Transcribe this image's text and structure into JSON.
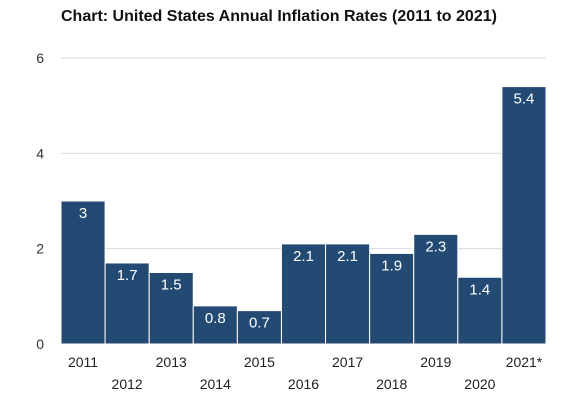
{
  "chart_data": {
    "type": "bar",
    "title": "Chart: United States Annual Inflation Rates (2011 to 2021)",
    "xlabel": "",
    "ylabel": "",
    "categories": [
      "2011",
      "2012",
      "2013",
      "2014",
      "2015",
      "2016",
      "2017",
      "2018",
      "2019",
      "2020",
      "2021*"
    ],
    "values": [
      3,
      1.7,
      1.5,
      0.8,
      0.7,
      2.1,
      2.1,
      1.9,
      2.3,
      1.4,
      5.4
    ],
    "data_labels": [
      "3",
      "1.7",
      "1.5",
      "0.8",
      "0.7",
      "2.1",
      "2.1",
      "1.9",
      "2.3",
      "1.4",
      "5.4"
    ],
    "y_ticks": [
      0,
      2,
      4,
      6
    ],
    "y_tick_labels": [
      "0",
      "2",
      "4",
      "6"
    ],
    "ylim": [
      0,
      6
    ],
    "grid": true,
    "legend": "none",
    "bar_color": "#234a73",
    "bar_border_color": "#ffffff",
    "grid_color": "#d9d9d9"
  }
}
